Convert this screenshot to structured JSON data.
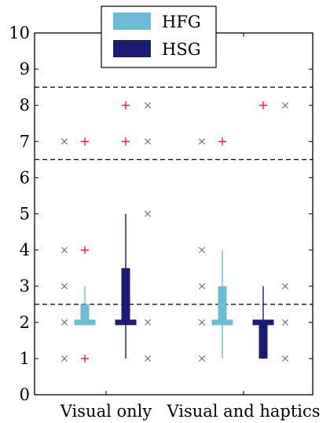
{
  "chart_data": {
    "type": "box",
    "categories": [
      "Visual only",
      "Visual and haptics"
    ],
    "ylim": [
      0,
      10
    ],
    "yticks": [
      0,
      1,
      2,
      3,
      4,
      5,
      6,
      7,
      8,
      9,
      10
    ],
    "grid": false,
    "legend_position": "top-center",
    "reference_lines": [
      2.5,
      6.5,
      8.5
    ],
    "series": [
      {
        "name": "HFG",
        "color": "#6bbcd6",
        "boxes": [
          {
            "category": "Visual only",
            "whisker_low": 2,
            "q1": 2,
            "median": 2,
            "q3": 2.5,
            "whisker_high": 3
          },
          {
            "category": "Visual and haptics",
            "whisker_low": 1,
            "q1": 2,
            "median": 2,
            "q3": 3,
            "whisker_high": 4
          }
        ],
        "outliers": [
          {
            "category": "Visual only",
            "values": [
              1,
              4,
              7
            ]
          },
          {
            "category": "Visual and haptics",
            "values": [
              7
            ]
          }
        ],
        "raw_points": [
          {
            "category": "Visual only",
            "values": [
              1,
              2,
              3,
              4,
              7
            ]
          },
          {
            "category": "Visual and haptics",
            "values": [
              1,
              2,
              3,
              4,
              7
            ]
          }
        ]
      },
      {
        "name": "HSG",
        "color": "#1b1b75",
        "boxes": [
          {
            "category": "Visual only",
            "whisker_low": 1,
            "q1": 2,
            "median": 2,
            "q3": 3.5,
            "whisker_high": 5
          },
          {
            "category": "Visual and haptics",
            "whisker_low": 1,
            "q1": 1,
            "median": 2,
            "q3": 2,
            "whisker_high": 3
          }
        ],
        "outliers": [
          {
            "category": "Visual only",
            "values": [
              7,
              8
            ]
          },
          {
            "category": "Visual and haptics",
            "values": [
              8
            ]
          }
        ],
        "raw_points": [
          {
            "category": "Visual only",
            "values": [
              1,
              2,
              5,
              7,
              8
            ]
          },
          {
            "category": "Visual and haptics",
            "values": [
              1,
              2,
              3,
              8
            ]
          }
        ]
      }
    ],
    "outlier_color": "#e8141e",
    "raw_point_color": "#6e6e6e"
  }
}
